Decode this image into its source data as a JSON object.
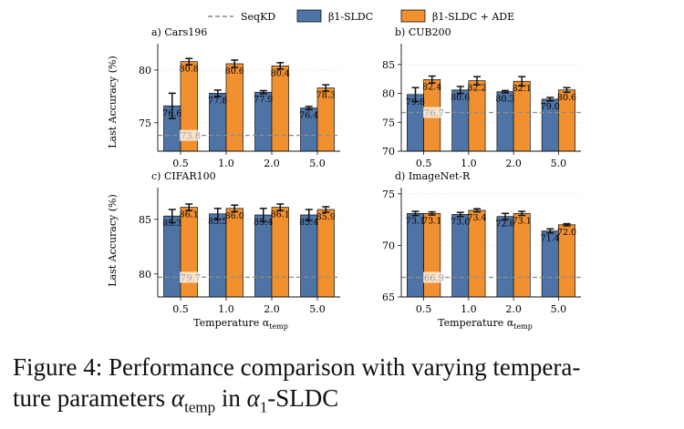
{
  "legend": {
    "seqkd": "SeqKD",
    "sldc": "β1-SLDC",
    "sldc_ade": "β1-SLDC + ADE"
  },
  "colors": {
    "sldc": "#4e74a6",
    "sldc_ade": "#f0902f",
    "baseline": "#8c8c8c"
  },
  "shared_axes": {
    "ylabel": "Last Accuracy (%)",
    "xlabel": "Temperature α_temp"
  },
  "chart_data": [
    {
      "type": "bar",
      "title": "a) Cars196",
      "categories": [
        "0.5",
        "1.0",
        "2.0",
        "5.0"
      ],
      "series": [
        {
          "name": "β1-SLDC",
          "values": [
            76.6,
            77.8,
            77.9,
            76.4
          ],
          "errors": [
            1.2,
            0.3,
            0.15,
            0.15
          ],
          "labels": [
            "76.6",
            "77.8",
            "77.9",
            "76.4"
          ]
        },
        {
          "name": "β1-SLDC + ADE",
          "values": [
            80.8,
            80.6,
            80.4,
            78.3
          ],
          "errors": [
            0.3,
            0.35,
            0.3,
            0.3
          ],
          "labels": [
            "80.8",
            "80.6",
            "80.4",
            "78.3"
          ]
        }
      ],
      "baseline": {
        "name": "SeqKD",
        "value": 73.8,
        "label": "73.8"
      },
      "ylim": [
        72.3,
        82.5
      ],
      "yticks": [
        75,
        80
      ],
      "ytick_labels": [
        "75",
        "80"
      ]
    },
    {
      "type": "bar",
      "title": "b) CUB200",
      "categories": [
        "0.5",
        "1.0",
        "2.0",
        "5.0"
      ],
      "series": [
        {
          "name": "β1-SLDC",
          "values": [
            79.8,
            80.6,
            80.3,
            79.0
          ],
          "errors": [
            1.2,
            0.6,
            0.2,
            0.3
          ],
          "labels": [
            "79.8",
            "80.6",
            "80.3",
            "79.0"
          ]
        },
        {
          "name": "β1-SLDC + ADE",
          "values": [
            82.4,
            82.2,
            82.1,
            80.6
          ],
          "errors": [
            0.6,
            0.7,
            0.8,
            0.4
          ],
          "labels": [
            "82.4",
            "82.2",
            "82.1",
            "80.6"
          ]
        }
      ],
      "baseline": {
        "name": "SeqKD",
        "value": 76.7,
        "label": "76.7"
      },
      "ylim": [
        70,
        88.6
      ],
      "yticks": [
        70,
        75,
        80,
        85
      ],
      "ytick_labels": [
        "70",
        "75",
        "80",
        "85"
      ]
    },
    {
      "type": "bar",
      "title": "c) CIFAR100",
      "categories": [
        "0.5",
        "1.0",
        "2.0",
        "5.0"
      ],
      "series": [
        {
          "name": "β1-SLDC",
          "values": [
            85.3,
            85.5,
            85.4,
            85.4
          ],
          "errors": [
            0.6,
            0.5,
            0.6,
            0.5
          ],
          "labels": [
            "85.3",
            "85.5",
            "85.4",
            "85.4"
          ]
        },
        {
          "name": "β1-SLDC + ADE",
          "values": [
            86.1,
            86.0,
            86.1,
            85.9
          ],
          "errors": [
            0.3,
            0.3,
            0.3,
            0.25
          ],
          "labels": [
            "86.1",
            "86.0",
            "86.1",
            "85.9"
          ]
        }
      ],
      "baseline": {
        "name": "SeqKD",
        "value": 79.7,
        "label": "79.7"
      },
      "ylim": [
        77.9,
        87.9
      ],
      "yticks": [
        80,
        85
      ],
      "ytick_labels": [
        "80",
        "85"
      ]
    },
    {
      "type": "bar",
      "title": "d) ImageNet-R",
      "categories": [
        "0.5",
        "1.0",
        "2.0",
        "5.0"
      ],
      "series": [
        {
          "name": "β1-SLDC",
          "values": [
            73.1,
            73.0,
            72.8,
            71.4
          ],
          "errors": [
            0.2,
            0.2,
            0.3,
            0.2
          ],
          "labels": [
            "73.1",
            "73.0",
            "72.8",
            "71.4"
          ]
        },
        {
          "name": "β1-SLDC + ADE",
          "values": [
            73.1,
            73.4,
            73.1,
            72.0
          ],
          "errors": [
            0.15,
            0.15,
            0.2,
            0.1
          ],
          "labels": [
            "73.1",
            "73.4",
            "73.1",
            "72.0"
          ]
        }
      ],
      "baseline": {
        "name": "SeqKD",
        "value": 66.9,
        "label": "66.9"
      },
      "ylim": [
        65,
        75.6
      ],
      "yticks": [
        65,
        70,
        75
      ],
      "ytick_labels": [
        "65",
        "70",
        "75"
      ]
    }
  ],
  "caption": {
    "prefix": "Figure 4:  Performance comparison with varying tempera-",
    "line2_a": "ture parameters ",
    "alpha": "α",
    "temp_sub": "temp",
    "line2_b": " in ",
    "alpha1": "α",
    "one_sub": "1",
    "suffix": "-SLDC"
  }
}
